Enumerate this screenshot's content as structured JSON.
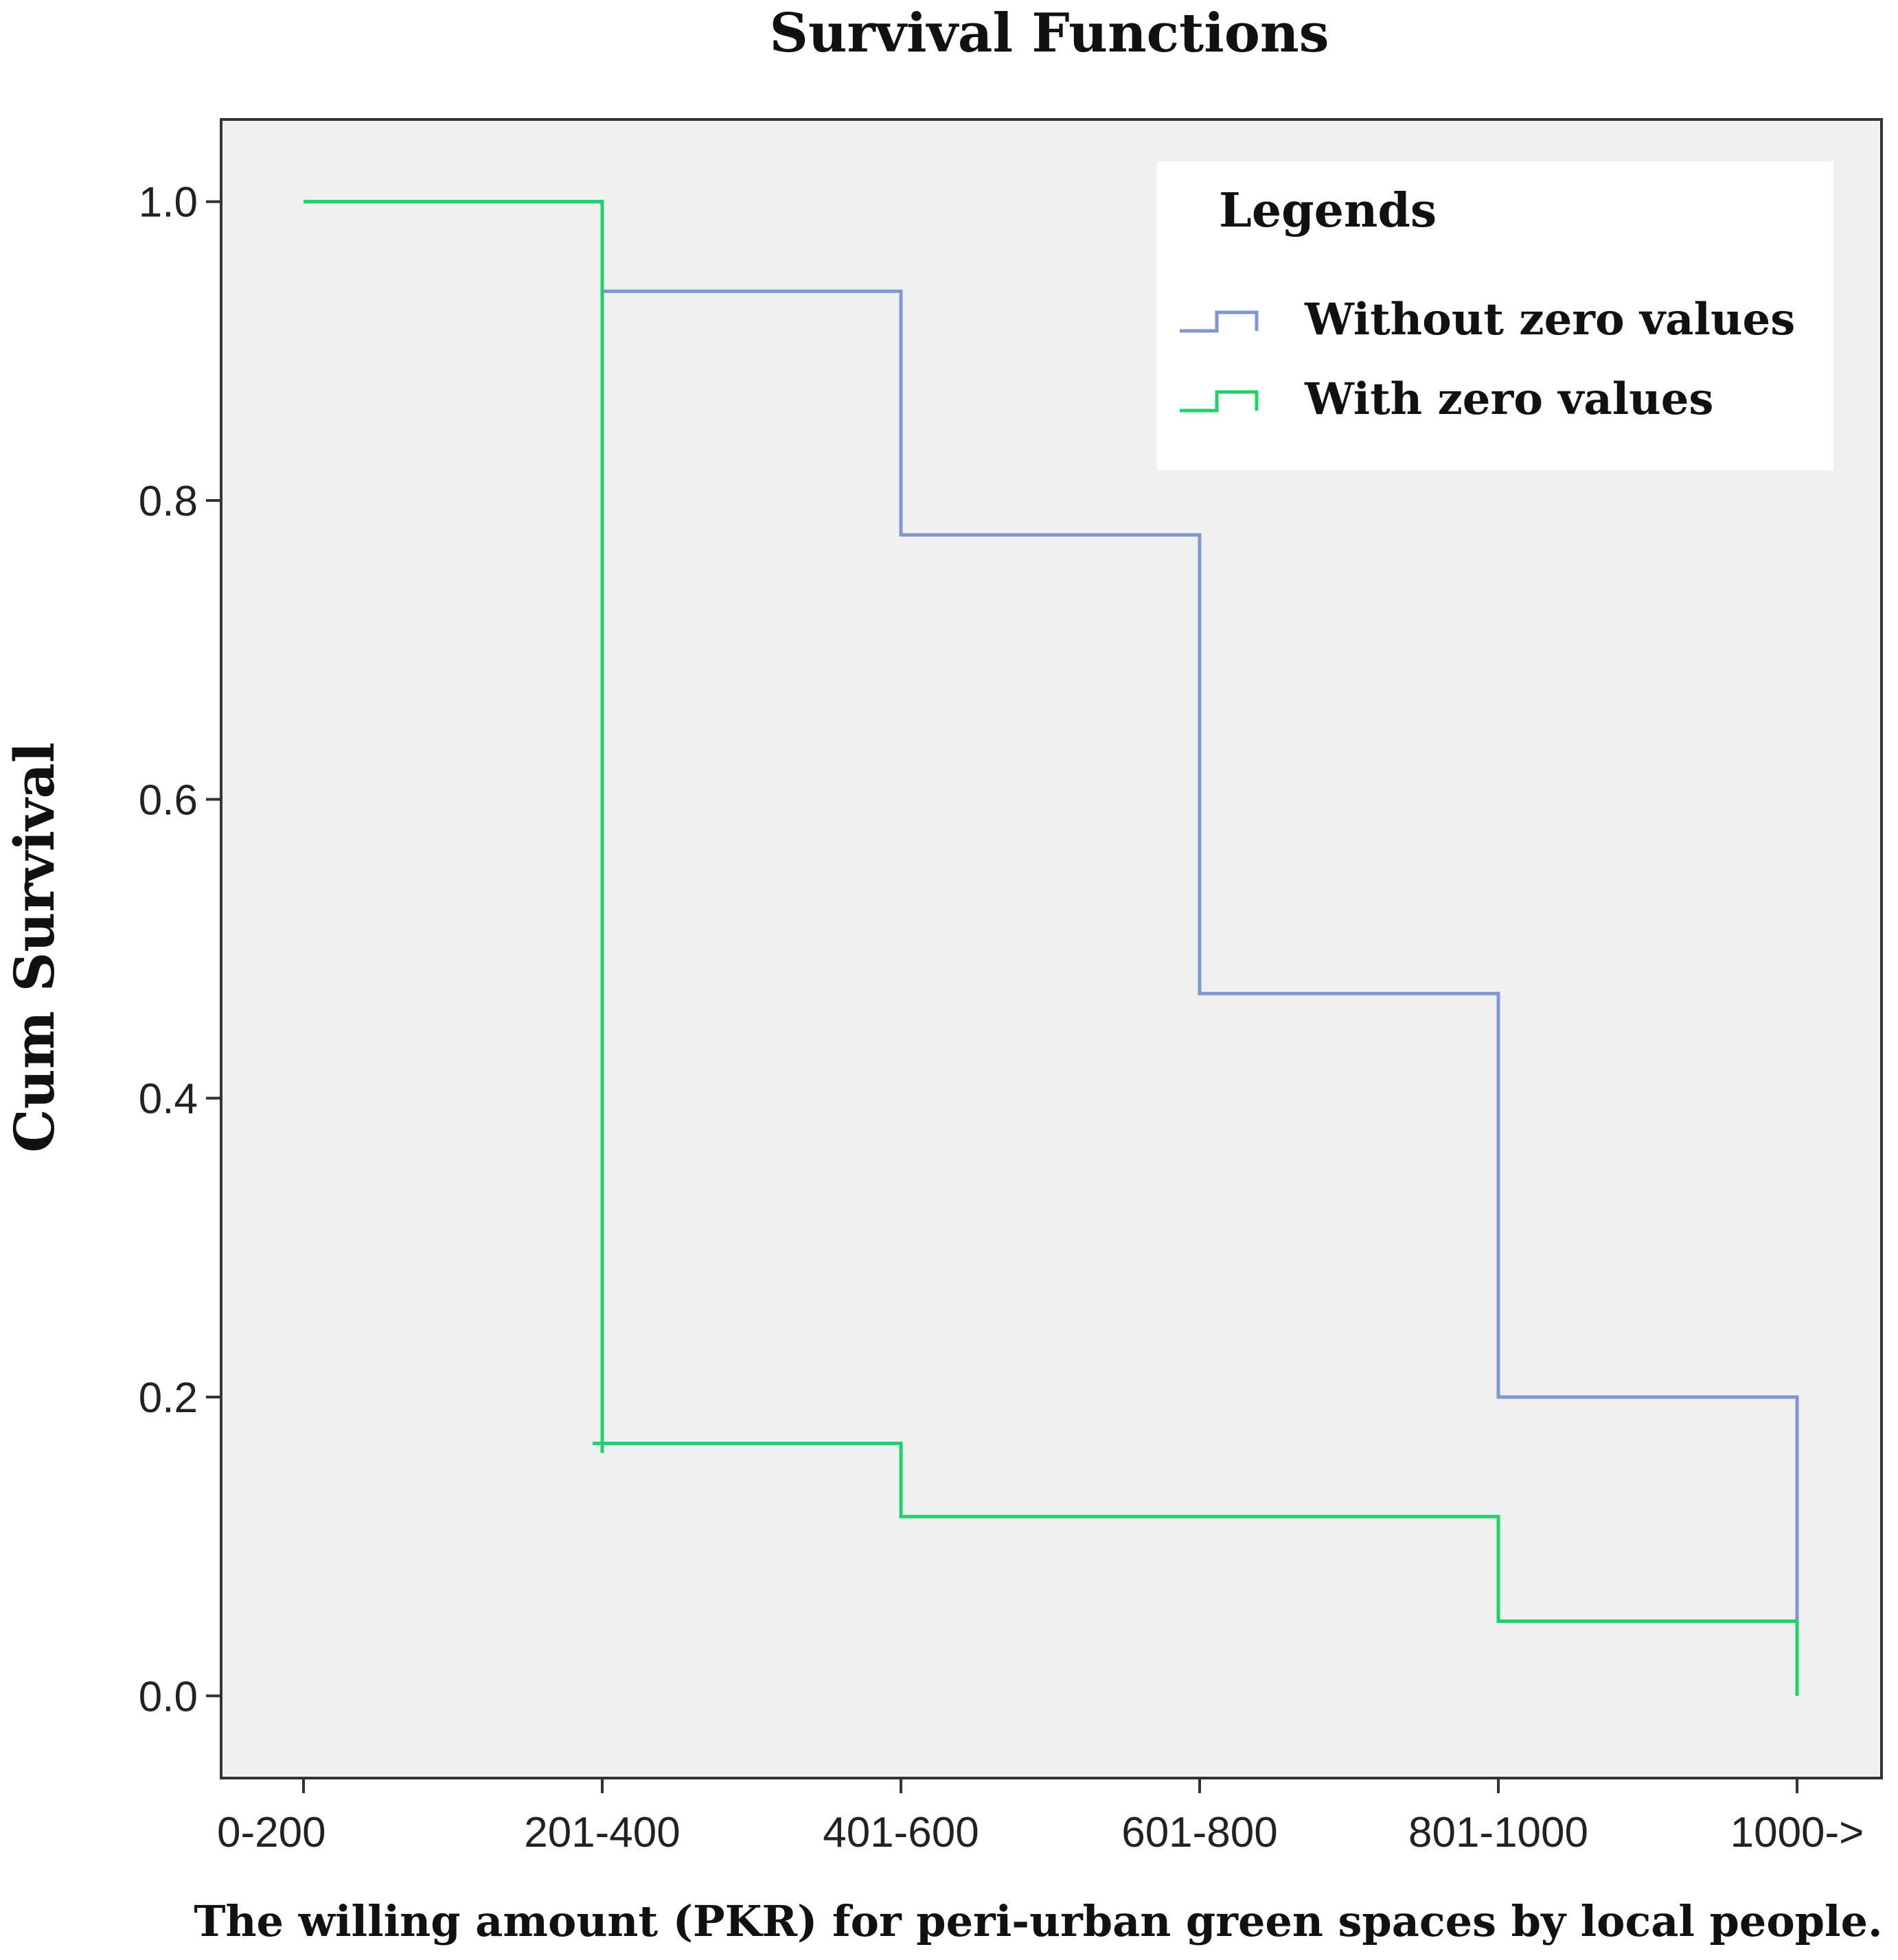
{
  "chart_data": {
    "type": "line",
    "step": true,
    "title": "Survival Functions",
    "xlabel": "The willing amount (PKR) for peri-urban green spaces by local people.",
    "ylabel": "Cum Survival",
    "categories": [
      "0-200",
      "201-400",
      "401-600",
      "601-800",
      "801-1000",
      "1000->"
    ],
    "ylim": [
      -0.055,
      1.055
    ],
    "yticks": [
      0.0,
      0.2,
      0.4,
      0.6,
      0.8,
      1.0
    ],
    "ytick_labels": [
      "0.0",
      "0.2",
      "0.4",
      "0.6",
      "0.8",
      "1.0"
    ],
    "grid": false,
    "legend": {
      "title": "Legends",
      "placement": "top-right",
      "entries": [
        "Without zero values",
        "With zero values"
      ]
    },
    "series": [
      {
        "name": "Without zero values",
        "color": "#7f96cf",
        "x": [
          0,
          1,
          2,
          3,
          4,
          5
        ],
        "values": [
          1.0,
          0.94,
          0.777,
          0.47,
          0.2,
          0.05
        ]
      },
      {
        "name": "With zero values",
        "color": "#21cf6e",
        "x": [
          0,
          1,
          2,
          3,
          4,
          5
        ],
        "values": [
          1.0,
          0.169,
          0.12,
          0.12,
          0.05,
          0.0
        ],
        "censored": [
          {
            "x": 1,
            "y": 0.169
          }
        ]
      }
    ]
  }
}
